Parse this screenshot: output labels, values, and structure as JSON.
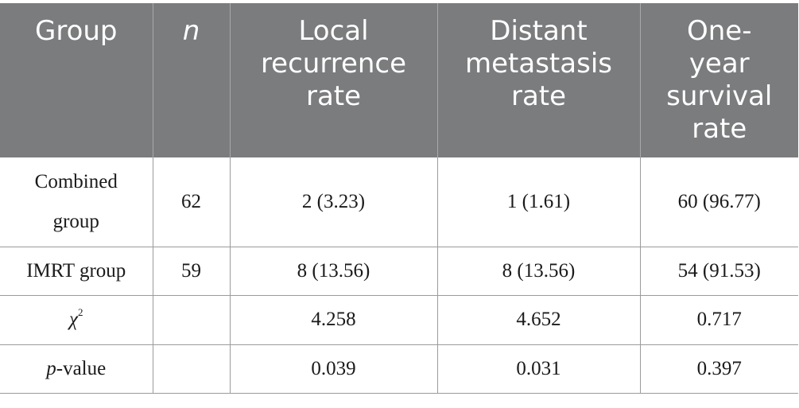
{
  "table": {
    "headers": [
      {
        "text": "Group",
        "italic": false
      },
      {
        "text": "n",
        "italic": true
      },
      {
        "text": "Local recurrence rate",
        "italic": false
      },
      {
        "text": "Distant metastasis rate",
        "italic": false
      },
      {
        "text": "One-year survival rate",
        "italic": false
      }
    ],
    "header_lines": [
      [
        "Group"
      ],
      [
        "n"
      ],
      [
        "Local",
        "recurrence",
        "rate"
      ],
      [
        "Distant",
        "metastasis",
        "rate"
      ],
      [
        "One-",
        "year",
        "survival",
        "rate"
      ]
    ],
    "rows": [
      {
        "group_lines": [
          "Combined",
          "group"
        ],
        "n": "62",
        "local": "2 (3.23)",
        "distant": "1 (1.61)",
        "survival": "60 (96.77)"
      },
      {
        "group_lines": [
          "IMRT group"
        ],
        "n": "59",
        "local": "8 (13.56)",
        "distant": "8 (13.56)",
        "survival": "54 (91.53)"
      },
      {
        "label_symbol": "χ",
        "label_sup": "2",
        "n": "",
        "local": "4.258",
        "distant": "4.652",
        "survival": "0.717"
      },
      {
        "label_italic": "p",
        "label_rest": "-value",
        "n": "",
        "local": "0.039",
        "distant": "0.031",
        "survival": "0.397"
      }
    ]
  },
  "colors": {
    "header_bg": "#7b7c7e",
    "header_text": "#ffffff",
    "grid": "#9b9b9b"
  }
}
